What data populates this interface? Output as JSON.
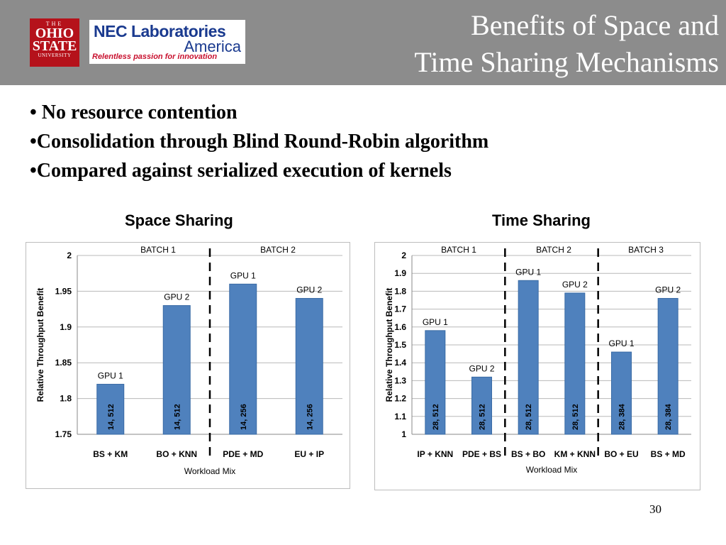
{
  "header": {
    "title_line1": "Benefits of Space and",
    "title_line2": "Time Sharing Mechanisms",
    "osu_logo": {
      "the": "THE",
      "ohio": "OHIO",
      "state": "STATE",
      "university": "UNIVERSITY"
    },
    "nec_logo": {
      "line1": "NEC Laboratories",
      "line2": "America",
      "tagline": "Relentless passion for innovation"
    },
    "background_color": "#8c8c8c"
  },
  "bullets": [
    "• No resource contention",
    "•Consolidation through Blind Round-Robin algorithm",
    "•Compared against serialized execution of kernels"
  ],
  "subtitles": {
    "left": "Space Sharing",
    "right": "Time Sharing"
  },
  "bar_color": "#4f81bd",
  "chart_data": [
    {
      "type": "bar",
      "title": "",
      "xlabel": "Workload Mix",
      "ylabel": "Relative Throughput Benefit",
      "ylim": [
        1.75,
        2
      ],
      "yticks": [
        "1.75",
        "1.8",
        "1.85",
        "1.9",
        "1.95",
        "2"
      ],
      "grid": true,
      "categories": [
        "BS + KM",
        "BO + KNN",
        "PDE + MD",
        "EU + IP"
      ],
      "values": [
        1.82,
        1.93,
        1.96,
        1.94
      ],
      "gpu_labels": [
        "GPU 1",
        "GPU 2",
        "GPU 1",
        "GPU 2"
      ],
      "bar_labels": [
        "14, 512",
        "14, 512",
        "14, 256",
        "14, 256"
      ],
      "batches": [
        "BATCH 1",
        "BATCH 2"
      ]
    },
    {
      "type": "bar",
      "title": "",
      "xlabel": "Workload Mix",
      "ylabel": "Relative Throughput Benefit",
      "ylim": [
        1,
        2
      ],
      "yticks": [
        "1",
        "1.1",
        "1.2",
        "1.3",
        "1.4",
        "1.5",
        "1.6",
        "1.7",
        "1.8",
        "1.9",
        "2"
      ],
      "grid": true,
      "categories": [
        "IP + KNN",
        "PDE + BS",
        "BS + BO",
        "KM + KNN",
        "BO + EU",
        "BS + MD"
      ],
      "values": [
        1.58,
        1.32,
        1.86,
        1.79,
        1.46,
        1.76
      ],
      "gpu_labels": [
        "GPU 1",
        "GPU 2",
        "GPU 1",
        "GPU 2",
        "GPU 1",
        "GPU 2"
      ],
      "bar_labels": [
        "28, 512",
        "28, 512",
        "28, 512",
        "28, 512",
        "28, 384",
        "28, 384"
      ],
      "batches": [
        "BATCH 1",
        "BATCH 2",
        "BATCH 3"
      ]
    }
  ],
  "page_number": "30"
}
